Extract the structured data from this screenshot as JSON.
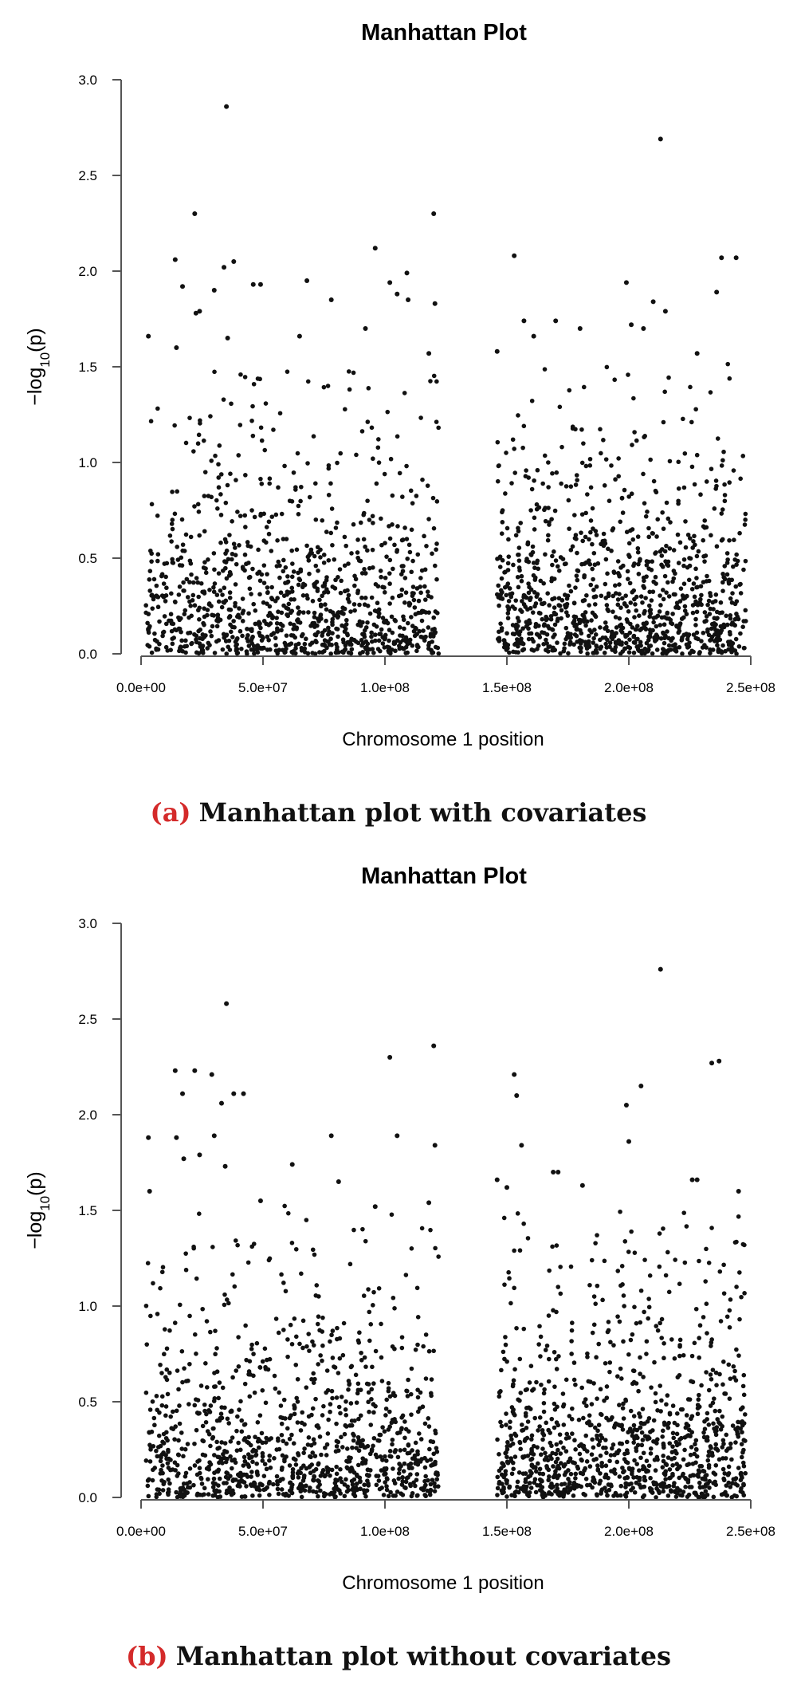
{
  "figure_a": {
    "caption_tag": "(a)",
    "caption_text": "Manhattan plot with covariates"
  },
  "figure_b": {
    "caption_tag": "(b)",
    "caption_text": "Manhattan plot without covariates"
  },
  "chart_data": [
    {
      "type": "scatter",
      "title": "Manhattan Plot",
      "xlabel": "Chromosome 1 position",
      "ylabel": "−log10(p)",
      "xlim": [
        0,
        250000000
      ],
      "ylim": [
        0,
        3.0
      ],
      "x_ticks": [
        0,
        50000000,
        100000000,
        150000000,
        200000000,
        250000000
      ],
      "x_tick_labels": [
        "0.0e+00",
        "5.0e+07",
        "1.0e+08",
        "1.5e+08",
        "2.0e+08",
        "2.5e+08"
      ],
      "y_ticks": [
        0.0,
        0.5,
        1.0,
        1.5,
        2.0,
        2.5,
        3.0
      ],
      "y_tick_labels": [
        "0.0",
        "0.5",
        "1.0",
        "1.5",
        "2.0",
        "2.5",
        "3.0"
      ],
      "grid": false,
      "marker_color": "#111111",
      "points": [
        [
          35000000,
          2.86
        ],
        [
          213000000,
          2.69
        ],
        [
          22000000,
          2.3
        ],
        [
          120000000,
          2.3
        ],
        [
          96000000,
          2.12
        ],
        [
          153000000,
          2.08
        ],
        [
          14000000,
          2.06
        ],
        [
          38000000,
          2.05
        ],
        [
          34000000,
          2.02
        ],
        [
          238000000,
          2.07
        ],
        [
          244000000,
          2.07
        ],
        [
          109000000,
          1.99
        ],
        [
          46000000,
          1.93
        ],
        [
          49000000,
          1.93
        ],
        [
          199000000,
          1.94
        ],
        [
          68000000,
          1.95
        ],
        [
          102000000,
          1.94
        ],
        [
          17000000,
          1.92
        ],
        [
          30000000,
          1.9
        ],
        [
          105000000,
          1.88
        ],
        [
          236000000,
          1.89
        ],
        [
          78000000,
          1.85
        ],
        [
          109500000,
          1.85
        ],
        [
          120500000,
          1.83
        ],
        [
          210000000,
          1.84
        ],
        [
          24000000,
          1.79
        ],
        [
          22500000,
          1.78
        ],
        [
          215000000,
          1.79
        ],
        [
          157000000,
          1.74
        ],
        [
          170000000,
          1.74
        ],
        [
          3000000,
          1.66
        ],
        [
          65000000,
          1.66
        ],
        [
          180000000,
          1.7
        ],
        [
          201000000,
          1.72
        ],
        [
          206000000,
          1.7
        ],
        [
          92000000,
          1.7
        ],
        [
          35500000,
          1.65
        ],
        [
          118000000,
          1.57
        ],
        [
          146000000,
          1.58
        ],
        [
          228000000,
          1.57
        ],
        [
          14500000,
          1.6
        ],
        [
          161000000,
          1.66
        ]
      ]
    },
    {
      "type": "scatter",
      "title": "Manhattan Plot",
      "xlabel": "Chromosome 1 position",
      "ylabel": "−log10(p)",
      "xlim": [
        0,
        250000000
      ],
      "ylim": [
        0,
        3.0
      ],
      "x_ticks": [
        0,
        50000000,
        100000000,
        150000000,
        200000000,
        250000000
      ],
      "x_tick_labels": [
        "0.0e+00",
        "5.0e+07",
        "1.0e+08",
        "1.5e+08",
        "2.0e+08",
        "2.5e+08"
      ],
      "y_ticks": [
        0.0,
        0.5,
        1.0,
        1.5,
        2.0,
        2.5,
        3.0
      ],
      "y_tick_labels": [
        "0.0",
        "0.5",
        "1.0",
        "1.5",
        "2.0",
        "2.5",
        "3.0"
      ],
      "grid": false,
      "marker_color": "#111111",
      "points": [
        [
          213000000,
          2.76
        ],
        [
          35000000,
          2.58
        ],
        [
          120000000,
          2.36
        ],
        [
          102000000,
          2.3
        ],
        [
          234000000,
          2.27
        ],
        [
          237000000,
          2.28
        ],
        [
          14000000,
          2.23
        ],
        [
          22000000,
          2.23
        ],
        [
          29000000,
          2.21
        ],
        [
          153000000,
          2.21
        ],
        [
          38000000,
          2.11
        ],
        [
          42000000,
          2.11
        ],
        [
          17000000,
          2.11
        ],
        [
          154000000,
          2.1
        ],
        [
          205000000,
          2.15
        ],
        [
          199000000,
          2.05
        ],
        [
          33000000,
          2.06
        ],
        [
          3000000,
          1.88
        ],
        [
          14500000,
          1.88
        ],
        [
          30000000,
          1.89
        ],
        [
          78000000,
          1.89
        ],
        [
          105000000,
          1.89
        ],
        [
          156000000,
          1.84
        ],
        [
          120500000,
          1.84
        ],
        [
          200000000,
          1.86
        ],
        [
          24000000,
          1.79
        ],
        [
          17500000,
          1.77
        ],
        [
          62000000,
          1.74
        ],
        [
          34500000,
          1.73
        ],
        [
          169000000,
          1.7
        ],
        [
          171000000,
          1.7
        ],
        [
          226000000,
          1.66
        ],
        [
          228000000,
          1.66
        ],
        [
          146000000,
          1.66
        ],
        [
          150000000,
          1.62
        ],
        [
          81000000,
          1.65
        ],
        [
          3500000,
          1.6
        ],
        [
          245000000,
          1.6
        ],
        [
          118000000,
          1.54
        ],
        [
          96000000,
          1.52
        ],
        [
          49000000,
          1.55
        ],
        [
          181000000,
          1.63
        ]
      ]
    }
  ]
}
